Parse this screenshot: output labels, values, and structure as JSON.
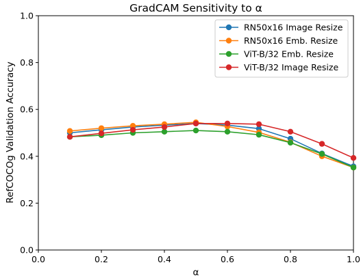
{
  "chart_data": {
    "type": "line",
    "title": "GradCAM Sensitivity to α",
    "xlabel": "α",
    "ylabel": "RefCOCOg Validation Accuracy",
    "xlim": [
      0.0,
      1.0
    ],
    "ylim": [
      0.0,
      1.0
    ],
    "x_ticks": [
      "0.0",
      "0.2",
      "0.4",
      "0.6",
      "0.8",
      "1.0"
    ],
    "y_ticks": [
      "0.0",
      "0.2",
      "0.4",
      "0.6",
      "0.8",
      "1.0"
    ],
    "grid": false,
    "legend_position": "top-right",
    "x": [
      0.1,
      0.2,
      0.3,
      0.4,
      0.5,
      0.6,
      0.7,
      0.8,
      0.9,
      1.0
    ],
    "series": [
      {
        "name": "RN50x16 Image Resize",
        "color": "#1f77b4",
        "values": [
          0.5,
          0.513,
          0.525,
          0.533,
          0.54,
          0.533,
          0.518,
          0.475,
          0.412,
          0.357
        ]
      },
      {
        "name": "RN50x16 Emb. Resize",
        "color": "#ff7f0e",
        "values": [
          0.508,
          0.52,
          0.53,
          0.537,
          0.545,
          0.527,
          0.502,
          0.46,
          0.4,
          0.352
        ]
      },
      {
        "name": "ViT-B/32 Emb. Resize",
        "color": "#2ca02c",
        "values": [
          0.483,
          0.49,
          0.5,
          0.505,
          0.51,
          0.505,
          0.492,
          0.458,
          0.41,
          0.352
        ]
      },
      {
        "name": "ViT-B/32 Image Resize",
        "color": "#d62728",
        "values": [
          0.483,
          0.498,
          0.513,
          0.525,
          0.54,
          0.54,
          0.537,
          0.505,
          0.453,
          0.393
        ]
      }
    ]
  }
}
